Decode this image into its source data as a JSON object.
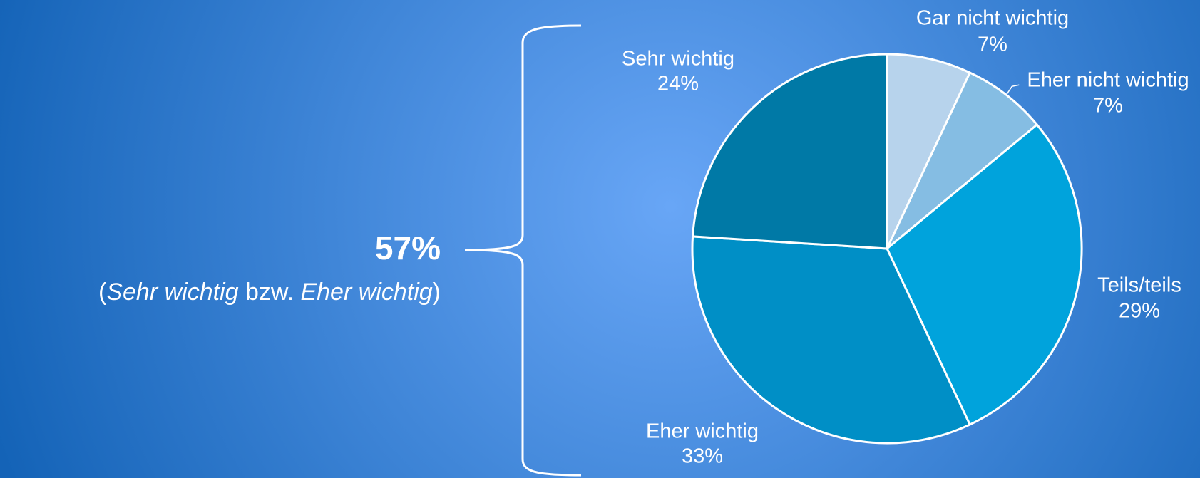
{
  "chart_data": {
    "type": "pie",
    "categories": [
      "Gar nicht wichtig",
      "Eher nicht wichtig",
      "Teils/teils",
      "Eher wichtig",
      "Sehr wichtig"
    ],
    "values": [
      7,
      7,
      29,
      33,
      24
    ],
    "value_labels": [
      "7%",
      "7%",
      "29%",
      "33%",
      "24%"
    ],
    "colors": [
      "#b7d3ec",
      "#85bde3",
      "#00a3dc",
      "#008fc6",
      "#0079a6"
    ],
    "annotation": {
      "text": "57%",
      "note_parts": [
        "(",
        "Sehr wichtig",
        " bzw. ",
        "Eher wichtig",
        ")"
      ]
    }
  }
}
